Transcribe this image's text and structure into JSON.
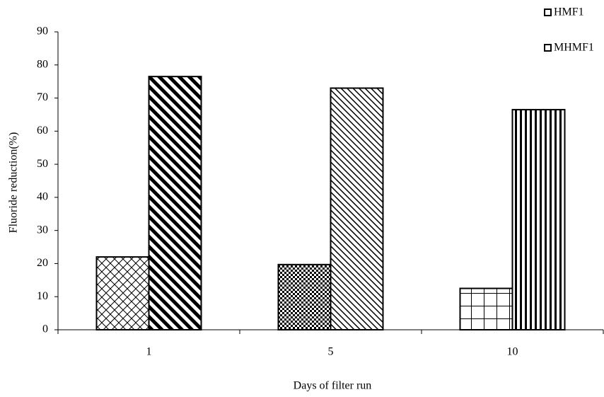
{
  "chart_data": {
    "type": "bar",
    "x_label": "Days of filter run",
    "y_label": "Fluoride reduction(%)",
    "categories": [
      "1",
      "5",
      "10"
    ],
    "series": [
      {
        "name": "HMF1",
        "color": "#000000",
        "values": [
          22,
          19.7,
          12.5
        ]
      },
      {
        "name": "MHMF1",
        "color": "#000000",
        "values": [
          76.5,
          73,
          66.5
        ]
      }
    ],
    "ylim": [
      0,
      90
    ],
    "yticks": [
      0,
      10,
      20,
      30,
      40,
      50,
      60,
      70,
      80,
      90
    ],
    "legend": "top-right"
  }
}
